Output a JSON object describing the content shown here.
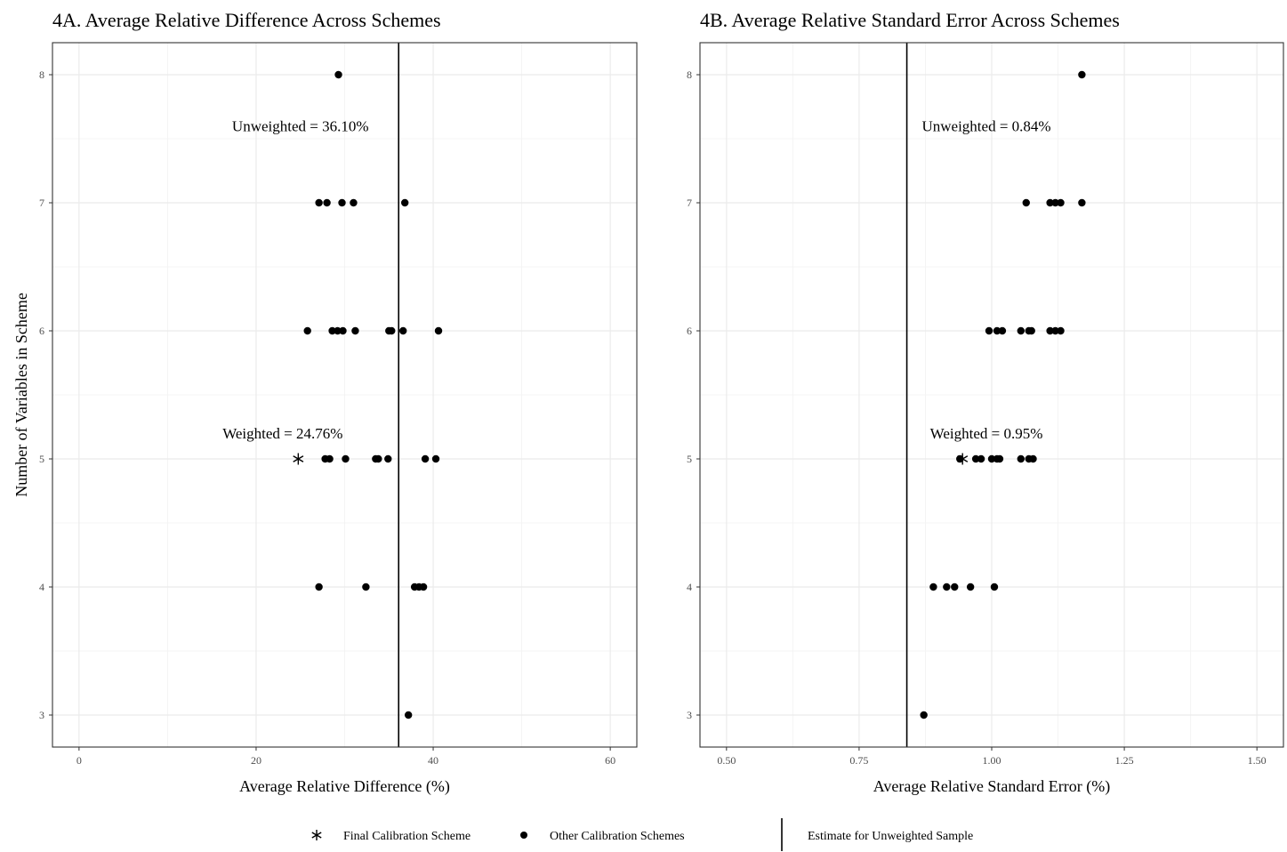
{
  "chart_data": [
    {
      "type": "scatter",
      "title": "4A. Average Relative Difference Across Schemes",
      "xlabel": "Average Relative Difference (%)",
      "ylabel": "Number of Variables in Scheme",
      "xlim": [
        -3,
        63
      ],
      "ylim": [
        2.75,
        8.25
      ],
      "xticks": [
        0,
        20,
        40,
        60
      ],
      "xtick_labels": [
        "0",
        "20",
        "40",
        "60"
      ],
      "yticks": [
        3,
        4,
        5,
        6,
        7,
        8
      ],
      "ytick_labels": [
        "3",
        "4",
        "5",
        "6",
        "7",
        "8"
      ],
      "grid": true,
      "reference_line": {
        "x": 36.1
      },
      "annotations": [
        {
          "text": "Unweighted = 36.10%",
          "x": 25,
          "y": 7.6
        },
        {
          "text": "Weighted = 24.76%",
          "x": 23,
          "y": 5.2
        }
      ],
      "series": [
        {
          "name": "Other Calibration Schemes",
          "marker": "dot",
          "points": [
            [
              29.3,
              8
            ],
            [
              27.1,
              7
            ],
            [
              28.0,
              7
            ],
            [
              29.7,
              7
            ],
            [
              31.0,
              7
            ],
            [
              36.8,
              7
            ],
            [
              25.8,
              6
            ],
            [
              28.6,
              6
            ],
            [
              29.2,
              6
            ],
            [
              29.8,
              6
            ],
            [
              31.2,
              6
            ],
            [
              35.0,
              6
            ],
            [
              35.3,
              6
            ],
            [
              36.6,
              6
            ],
            [
              40.6,
              6
            ],
            [
              27.8,
              5
            ],
            [
              28.3,
              5
            ],
            [
              30.1,
              5
            ],
            [
              33.5,
              5
            ],
            [
              33.8,
              5
            ],
            [
              34.9,
              5
            ],
            [
              39.1,
              5
            ],
            [
              40.3,
              5
            ],
            [
              27.1,
              4
            ],
            [
              32.4,
              4
            ],
            [
              37.9,
              4
            ],
            [
              38.4,
              4
            ],
            [
              38.9,
              4
            ],
            [
              37.2,
              3
            ]
          ]
        },
        {
          "name": "Final Calibration Scheme",
          "marker": "asterisk",
          "points": [
            [
              24.76,
              5
            ]
          ]
        }
      ]
    },
    {
      "type": "scatter",
      "title": "4B. Average Relative Standard Error Across Schemes",
      "xlabel": "Average Relative Standard Error (%)",
      "ylabel": "",
      "xlim": [
        0.45,
        1.55
      ],
      "ylim": [
        2.75,
        8.25
      ],
      "xticks": [
        0.5,
        0.75,
        1.0,
        1.25,
        1.5
      ],
      "xtick_labels": [
        "0.50",
        "0.75",
        "1.00",
        "1.25",
        "1.50"
      ],
      "yticks": [
        3,
        4,
        5,
        6,
        7,
        8
      ],
      "ytick_labels": [
        "3",
        "4",
        "5",
        "6",
        "7",
        "8"
      ],
      "grid": true,
      "reference_line": {
        "x": 0.84
      },
      "annotations": [
        {
          "text": "Unweighted = 0.84%",
          "x": 0.99,
          "y": 7.6
        },
        {
          "text": "Weighted = 0.95%",
          "x": 0.99,
          "y": 5.2
        }
      ],
      "series": [
        {
          "name": "Other Calibration Schemes",
          "marker": "dot",
          "points": [
            [
              1.17,
              8
            ],
            [
              1.065,
              7
            ],
            [
              1.11,
              7
            ],
            [
              1.12,
              7
            ],
            [
              1.13,
              7
            ],
            [
              1.17,
              7
            ],
            [
              0.995,
              6
            ],
            [
              1.01,
              6
            ],
            [
              1.02,
              6
            ],
            [
              1.055,
              6
            ],
            [
              1.07,
              6
            ],
            [
              1.075,
              6
            ],
            [
              1.11,
              6
            ],
            [
              1.12,
              6
            ],
            [
              1.13,
              6
            ],
            [
              0.94,
              5
            ],
            [
              0.97,
              5
            ],
            [
              0.98,
              5
            ],
            [
              1.0,
              5
            ],
            [
              1.01,
              5
            ],
            [
              1.015,
              5
            ],
            [
              1.055,
              5
            ],
            [
              1.07,
              5
            ],
            [
              1.078,
              5
            ],
            [
              0.89,
              4
            ],
            [
              0.915,
              4
            ],
            [
              0.93,
              4
            ],
            [
              0.96,
              4
            ],
            [
              1.005,
              4
            ],
            [
              0.872,
              3
            ]
          ]
        },
        {
          "name": "Final Calibration Scheme",
          "marker": "asterisk",
          "points": [
            [
              0.945,
              5
            ]
          ]
        }
      ]
    }
  ],
  "legend": {
    "placement": "bottom-center",
    "items": [
      {
        "marker": "asterisk",
        "label": "Final Calibration Scheme"
      },
      {
        "marker": "dot",
        "label": "Other Calibration Schemes"
      },
      {
        "marker": "vline",
        "label": "Estimate for Unweighted Sample"
      }
    ]
  }
}
